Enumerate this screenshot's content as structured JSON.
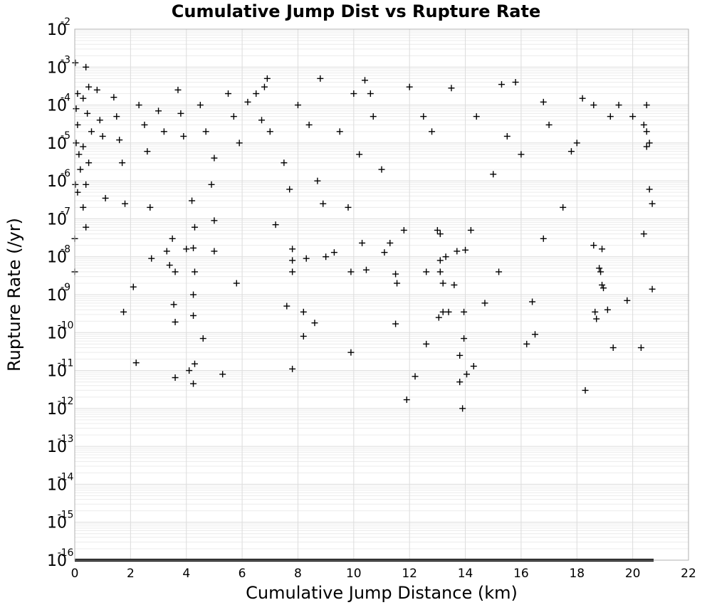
{
  "chart_data": {
    "type": "scatter",
    "title": "Cumulative Jump Dist vs Rupture Rate",
    "xlabel": "Cumulative Jump Distance (km)",
    "ylabel": "Rupture Rate (/yr)",
    "xlim": [
      0,
      22
    ],
    "ylim_exponent": [
      -16,
      -2
    ],
    "y_scale": "log",
    "x_ticks": [
      "0",
      "2",
      "4",
      "6",
      "8",
      "10",
      "12",
      "14",
      "16",
      "18",
      "20",
      "22"
    ],
    "y_tick_base": "10",
    "y_tick_exponents": [
      "-2",
      "-3",
      "-4",
      "-5",
      "-6",
      "-7",
      "-8",
      "-9",
      "-10",
      "-11",
      "-12",
      "-13",
      "-14",
      "-15",
      "-16"
    ],
    "grid": true,
    "marker": "plus",
    "marker_color": "#000000",
    "floor_band": {
      "y": 1e-16,
      "x_range": [
        0,
        20.75
      ],
      "note": "dense row of points at 10^-16"
    },
    "points": [
      [
        0.02,
        0.0013
      ],
      [
        0.1,
        0.0002
      ],
      [
        0.05,
        8e-05
      ],
      [
        0.1,
        3e-05
      ],
      [
        0.05,
        1e-05
      ],
      [
        0.15,
        5e-06
      ],
      [
        0.2,
        2e-06
      ],
      [
        0.02,
        8e-07
      ],
      [
        0.1,
        5e-07
      ],
      [
        0.0,
        3e-08
      ],
      [
        0.0,
        4e-09
      ],
      [
        0.4,
        0.001
      ],
      [
        0.5,
        0.0003
      ],
      [
        0.3,
        0.00015
      ],
      [
        0.45,
        6e-05
      ],
      [
        0.6,
        2e-05
      ],
      [
        0.3,
        8e-06
      ],
      [
        0.5,
        3e-06
      ],
      [
        0.4,
        8e-07
      ],
      [
        0.3,
        2e-07
      ],
      [
        0.4,
        6e-08
      ],
      [
        0.8,
        0.00025
      ],
      [
        0.9,
        4e-05
      ],
      [
        1.0,
        1.5e-05
      ],
      [
        1.1,
        3.5e-07
      ],
      [
        1.4,
        0.00016
      ],
      [
        1.5,
        5e-05
      ],
      [
        1.6,
        1.2e-05
      ],
      [
        1.7,
        3e-06
      ],
      [
        1.8,
        2.5e-07
      ],
      [
        1.75,
        3.5e-10
      ],
      [
        2.1,
        1.6e-09
      ],
      [
        2.2,
        1.6e-11
      ],
      [
        2.3,
        0.0001
      ],
      [
        2.5,
        3e-05
      ],
      [
        2.6,
        6e-06
      ],
      [
        2.7,
        2e-07
      ],
      [
        2.75,
        9e-09
      ],
      [
        3.0,
        7e-05
      ],
      [
        3.2,
        2e-05
      ],
      [
        3.3,
        1.4e-08
      ],
      [
        3.4,
        6e-09
      ],
      [
        3.5,
        3e-08
      ],
      [
        3.6,
        4e-09
      ],
      [
        3.55,
        5.5e-10
      ],
      [
        3.6,
        1.9e-10
      ],
      [
        3.6,
        6.5e-12
      ],
      [
        3.7,
        0.00025
      ],
      [
        3.8,
        6e-05
      ],
      [
        3.9,
        1.5e-05
      ],
      [
        4.0,
        1.6e-08
      ],
      [
        4.1,
        1e-11
      ],
      [
        4.2,
        3e-07
      ],
      [
        4.25,
        1.7e-08
      ],
      [
        4.3,
        4e-09
      ],
      [
        4.25,
        1e-09
      ],
      [
        4.25,
        2.8e-10
      ],
      [
        4.3,
        1.5e-11
      ],
      [
        4.25,
        4.5e-12
      ],
      [
        4.3,
        6e-08
      ],
      [
        4.5,
        0.0001
      ],
      [
        4.6,
        7e-11
      ],
      [
        4.7,
        2e-05
      ],
      [
        4.9,
        8e-07
      ],
      [
        5.0,
        4e-06
      ],
      [
        5.0,
        9e-08
      ],
      [
        5.0,
        1.4e-08
      ],
      [
        5.3,
        8e-12
      ],
      [
        5.5,
        0.0002
      ],
      [
        5.7,
        5e-05
      ],
      [
        5.8,
        2e-09
      ],
      [
        5.9,
        1e-05
      ],
      [
        6.2,
        0.00012
      ],
      [
        6.5,
        0.0002
      ],
      [
        6.7,
        4e-05
      ],
      [
        6.9,
        0.0005
      ],
      [
        6.8,
        0.0003
      ],
      [
        7.0,
        2e-05
      ],
      [
        7.2,
        7e-08
      ],
      [
        7.5,
        3e-06
      ],
      [
        7.6,
        5e-10
      ],
      [
        7.7,
        6e-07
      ],
      [
        7.8,
        1.6e-08
      ],
      [
        7.8,
        8e-09
      ],
      [
        7.8,
        4e-09
      ],
      [
        7.8,
        1.1e-11
      ],
      [
        8.0,
        0.0001
      ],
      [
        8.2,
        3.5e-10
      ],
      [
        8.2,
        8e-11
      ],
      [
        8.3,
        9e-09
      ],
      [
        8.4,
        3e-05
      ],
      [
        8.6,
        1.8e-10
      ],
      [
        8.7,
        1e-06
      ],
      [
        8.8,
        0.0005
      ],
      [
        8.9,
        2.5e-07
      ],
      [
        9.0,
        1e-08
      ],
      [
        9.3,
        1.3e-08
      ],
      [
        9.5,
        2e-05
      ],
      [
        9.8,
        2e-07
      ],
      [
        9.9,
        4e-09
      ],
      [
        9.9,
        3e-11
      ],
      [
        10.0,
        0.0002
      ],
      [
        10.2,
        5e-06
      ],
      [
        10.3,
        2.3e-08
      ],
      [
        10.4,
        0.00045
      ],
      [
        10.45,
        4.5e-09
      ],
      [
        10.6,
        0.0002
      ],
      [
        10.7,
        5e-05
      ],
      [
        11.0,
        2e-06
      ],
      [
        11.1,
        1.3e-08
      ],
      [
        11.3,
        2.3e-08
      ],
      [
        11.5,
        3.5e-09
      ],
      [
        11.55,
        2e-09
      ],
      [
        11.5,
        1.7e-10
      ],
      [
        11.8,
        5e-08
      ],
      [
        11.9,
        1.7e-12
      ],
      [
        12.0,
        0.0003
      ],
      [
        12.2,
        7e-12
      ],
      [
        12.5,
        5e-05
      ],
      [
        12.6,
        4e-09
      ],
      [
        12.6,
        5e-11
      ],
      [
        12.8,
        2e-05
      ],
      [
        13.0,
        5e-08
      ],
      [
        13.05,
        2.5e-10
      ],
      [
        13.1,
        4e-09
      ],
      [
        13.1,
        8e-09
      ],
      [
        13.1,
        4e-08
      ],
      [
        13.2,
        3.5e-10
      ],
      [
        13.2,
        2e-09
      ],
      [
        13.3,
        1e-08
      ],
      [
        13.4,
        3.5e-10
      ],
      [
        13.5,
        0.00028
      ],
      [
        13.6,
        1.8e-09
      ],
      [
        13.7,
        1.4e-08
      ],
      [
        13.8,
        2.5e-11
      ],
      [
        13.8,
        5e-12
      ],
      [
        13.9,
        1e-12
      ],
      [
        13.95,
        3.5e-10
      ],
      [
        13.95,
        7e-11
      ],
      [
        14.0,
        1.5e-08
      ],
      [
        14.05,
        8e-12
      ],
      [
        14.2,
        5e-08
      ],
      [
        14.3,
        1.3e-11
      ],
      [
        14.4,
        5e-05
      ],
      [
        14.7,
        6e-10
      ],
      [
        15.0,
        1.5e-06
      ],
      [
        15.2,
        4e-09
      ],
      [
        15.3,
        0.00035
      ],
      [
        15.5,
        1.5e-05
      ],
      [
        15.8,
        0.0004
      ],
      [
        16.0,
        5e-06
      ],
      [
        16.2,
        5e-11
      ],
      [
        16.4,
        6.5e-10
      ],
      [
        16.5,
        9e-11
      ],
      [
        16.8,
        0.00012
      ],
      [
        16.8,
        3e-08
      ],
      [
        17.0,
        3e-05
      ],
      [
        17.5,
        2e-07
      ],
      [
        17.8,
        6e-06
      ],
      [
        18.0,
        1e-05
      ],
      [
        18.2,
        0.00015
      ],
      [
        18.3,
        3e-12
      ],
      [
        18.6,
        0.0001
      ],
      [
        18.6,
        2e-08
      ],
      [
        18.65,
        3.5e-10
      ],
      [
        18.7,
        2.3e-10
      ],
      [
        18.8,
        5e-09
      ],
      [
        18.85,
        4e-09
      ],
      [
        18.9,
        1.8e-09
      ],
      [
        18.95,
        1.5e-09
      ],
      [
        18.9,
        1.6e-08
      ],
      [
        19.1,
        4e-10
      ],
      [
        19.2,
        5e-05
      ],
      [
        19.3,
        4e-11
      ],
      [
        19.5,
        0.0001
      ],
      [
        19.8,
        7e-10
      ],
      [
        20.0,
        5e-05
      ],
      [
        20.3,
        4e-11
      ],
      [
        20.4,
        4e-08
      ],
      [
        20.5,
        2e-05
      ],
      [
        20.6,
        6e-07
      ],
      [
        20.7,
        1.4e-09
      ],
      [
        20.6,
        1e-05
      ],
      [
        20.7,
        2.5e-07
      ],
      [
        20.5,
        0.0001
      ],
      [
        20.4,
        3e-05
      ],
      [
        20.5,
        8e-06
      ]
    ]
  }
}
